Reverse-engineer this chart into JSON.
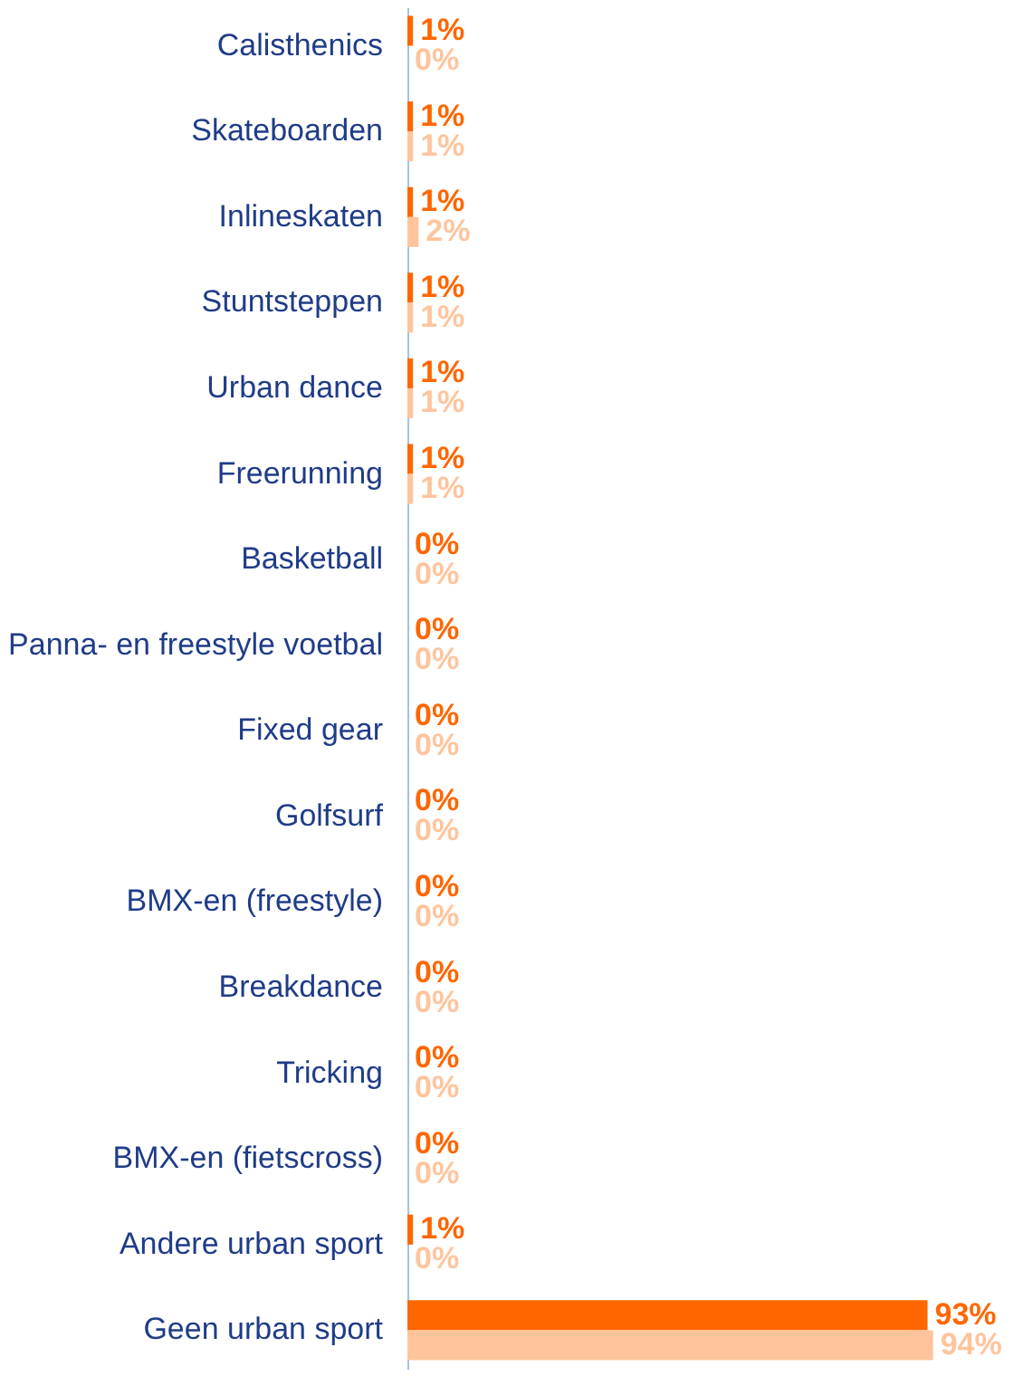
{
  "chart_data": {
    "type": "bar",
    "orientation": "horizontal",
    "tick_labels": "y",
    "legend": false,
    "categories": [
      "Calisthenics",
      "Skateboarden",
      "Inlineskaten",
      "Stuntsteppen",
      "Urban dance",
      "Freerunning",
      "Basketball",
      "Panna- en freestyle voetbal",
      "Fixed gear",
      "Golfsurf",
      "BMX-en (freestyle)",
      "Breakdance",
      "Tricking",
      "BMX-en (fietscross)",
      "Andere urban sport",
      "Geen urban sport"
    ],
    "series": [
      {
        "color": "#ff6600",
        "values": [
          1,
          1,
          1,
          1,
          1,
          1,
          0,
          0,
          0,
          0,
          0,
          0,
          0,
          0,
          1,
          93
        ],
        "value_labels": [
          "1%",
          "1%",
          "1%",
          "1%",
          "1%",
          "1%",
          "0%",
          "0%",
          "0%",
          "0%",
          "0%",
          "0%",
          "0%",
          "0%",
          "1%",
          "93%"
        ]
      },
      {
        "color": "#ffc49c",
        "values": [
          0,
          1,
          2,
          1,
          1,
          1,
          0,
          0,
          0,
          0,
          0,
          0,
          0,
          0,
          0,
          94
        ],
        "value_labels": [
          "0%",
          "1%",
          "2%",
          "1%",
          "1%",
          "1%",
          "0%",
          "0%",
          "0%",
          "0%",
          "0%",
          "0%",
          "0%",
          "0%",
          "0%",
          "94%"
        ]
      }
    ]
  }
}
